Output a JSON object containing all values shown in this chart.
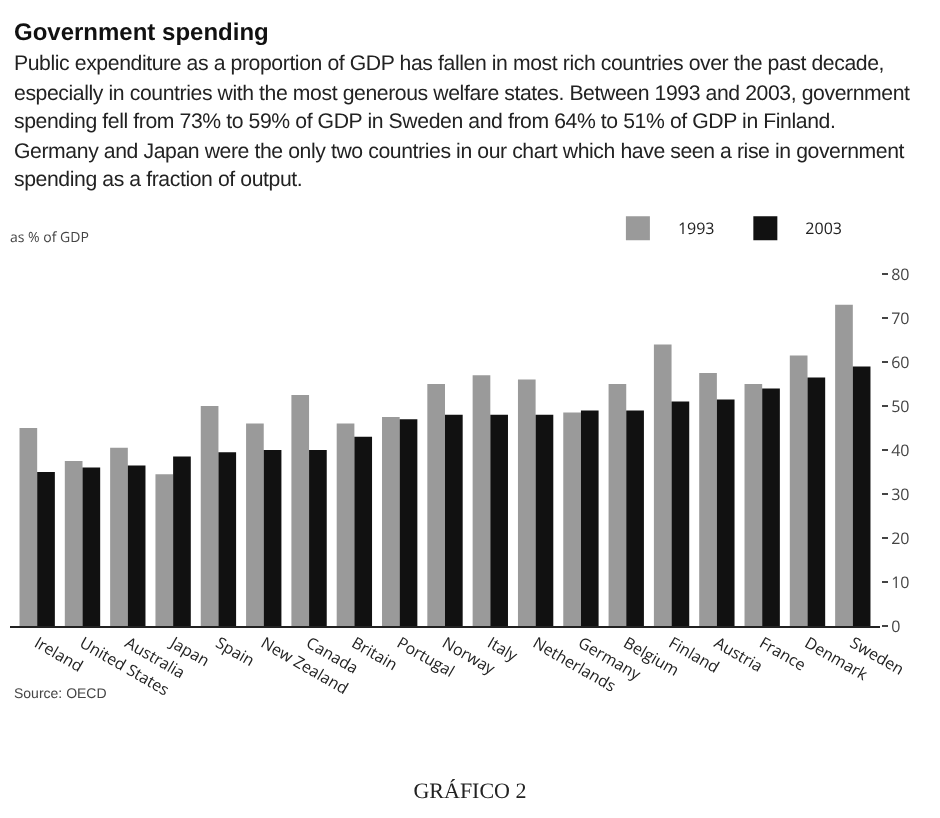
{
  "chart_data": {
    "type": "bar",
    "title": "Government spending",
    "subtitle": "Public expenditure as a proportion of GDP has fallen in most rich countries over the past decade, especially in countries with the most generous welfare states. Between 1993 and 2003, government spending fell from 73% to 59% of GDP in Sweden and from 64% to 51% of GDP in Finland. Germany and Japan were the only two countries in our chart which have seen a rise in government spending as a fraction of output.",
    "ylabel": "as % of GDP",
    "categories": [
      "Ireland",
      "United States",
      "Australia",
      "Japan",
      "Spain",
      "New Zealand",
      "Canada",
      "Britain",
      "Portugal",
      "Norway",
      "Italy",
      "Netherlands",
      "Germany",
      "Belgium",
      "Finland",
      "Austria",
      "France",
      "Denmark",
      "Sweden"
    ],
    "series": [
      {
        "name": "1993",
        "color": "#9a9a9a",
        "values": [
          45,
          37.5,
          40.5,
          34.5,
          50,
          46,
          52.5,
          46,
          47.5,
          55,
          57,
          56,
          48.5,
          55,
          64,
          57.5,
          55,
          61.5,
          73
        ]
      },
      {
        "name": "2003",
        "color": "#111111",
        "values": [
          35,
          36,
          36.5,
          38.5,
          39.5,
          40,
          40,
          43,
          47,
          48,
          48,
          48,
          49,
          49,
          51,
          51.5,
          54,
          56.5,
          59
        ]
      }
    ],
    "ylim": [
      0,
      80
    ],
    "yticks": [
      0,
      10,
      20,
      30,
      40,
      50,
      60,
      70,
      80
    ],
    "grid": false,
    "legend": "top right",
    "annotations": [
      "Source: OECD",
      "GRÁFICO 2"
    ]
  }
}
